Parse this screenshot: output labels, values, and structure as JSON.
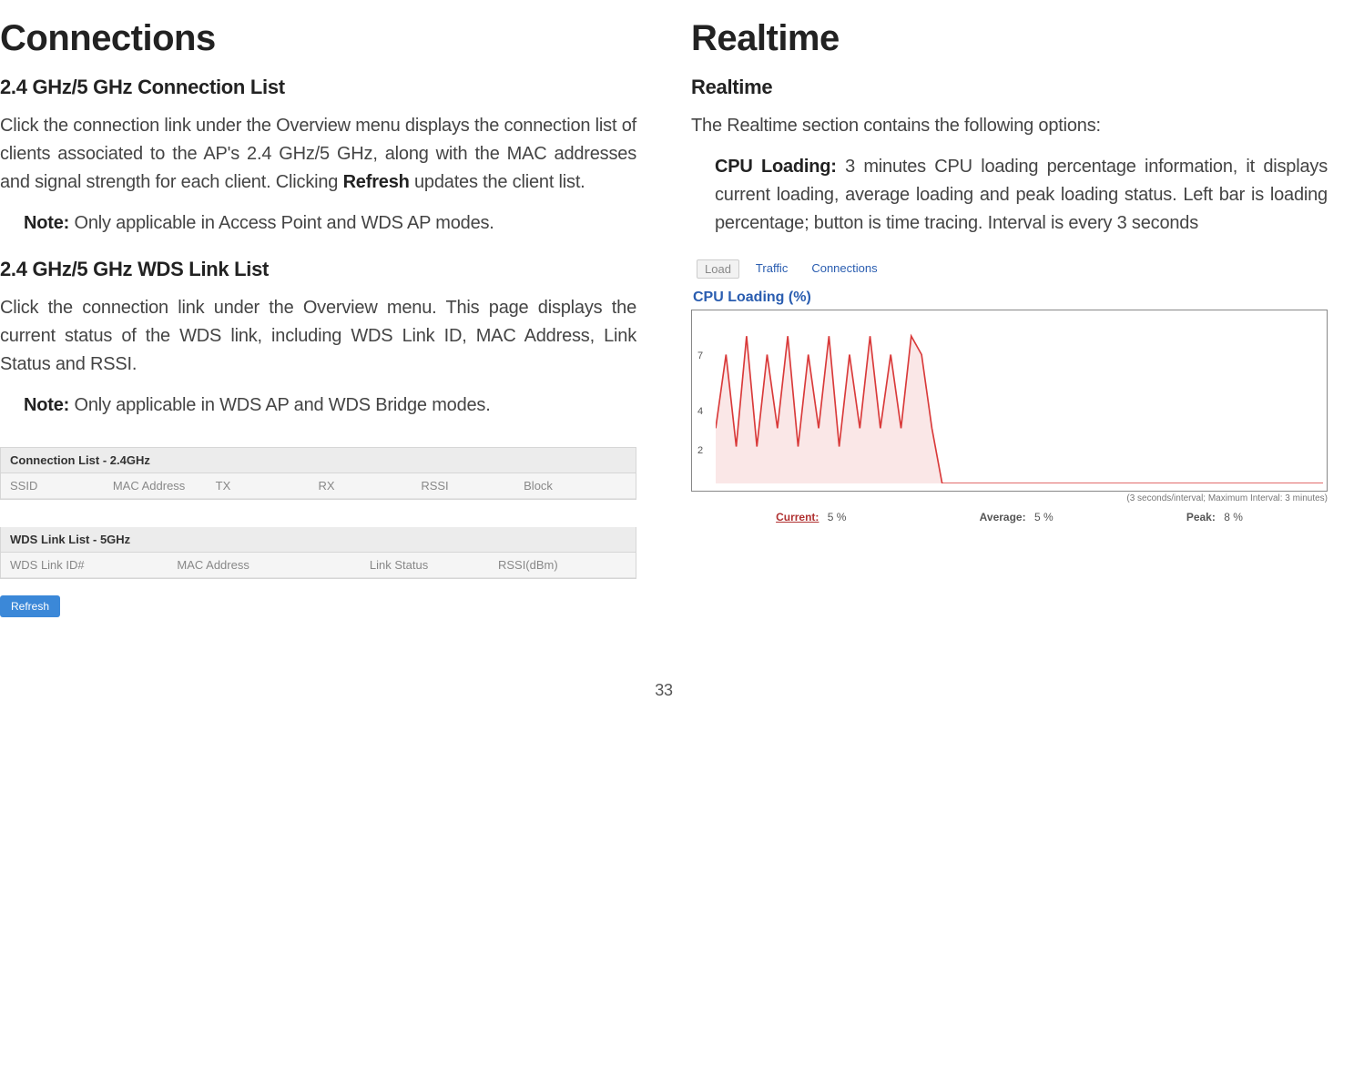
{
  "left": {
    "heading": "Connections",
    "sec1_title": "2.4 GHz/5 GHz Connection List",
    "sec1_body_a": "Click the connection link under the Overview menu displays the connection list of clients associated to the AP's 2.4 GHz/5 GHz, along with the MAC addresses and signal strength for each client. Clicking ",
    "sec1_body_bold": "Refresh",
    "sec1_body_b": " updates the client list.",
    "sec1_note_label": "Note:",
    "sec1_note_body": " Only applicable in Access Point and WDS AP modes.",
    "sec2_title": "2.4 GHz/5 GHz WDS Link List",
    "sec2_body": "Click the connection link under the Overview menu. This page displays the current status of the WDS link, including WDS Link ID, MAC Address, Link Status and RSSI.",
    "sec2_note_label": "Note:",
    "sec2_note_body": " Only applicable in WDS AP and WDS Bridge modes.",
    "conn_table": {
      "title1": "Connection List - 2.4GHz",
      "cols1": [
        "SSID",
        "MAC Address",
        "TX",
        "RX",
        "RSSI",
        "Block"
      ],
      "title2": "WDS Link List - 5GHz",
      "cols2": [
        "WDS Link ID#",
        "MAC Address",
        "Link Status",
        "RSSI(dBm)"
      ],
      "refresh_label": "Refresh"
    }
  },
  "right": {
    "heading": "Realtime",
    "sub_title": "Realtime",
    "intro": "The Realtime section contains the following options:",
    "cpu_label": "CPU Loading:",
    "cpu_body": " 3 minutes CPU loading percentage information, it displays current loading, average loading and peak loading status. Left bar is loading percentage; button is time tracing. Interval is every 3 seconds",
    "chart": {
      "tabs": {
        "load": "Load",
        "traffic": "Traffic",
        "connections": "Connections"
      },
      "title": "CPU Loading (%)",
      "y_ticks": [
        7,
        4,
        2
      ],
      "y_max": 9,
      "note": "(3 seconds/interval; Maximum Interval: 3 minutes)",
      "series": [
        3,
        7,
        2,
        8,
        2,
        7,
        3,
        8,
        2,
        7,
        3,
        8,
        2,
        7,
        3,
        8,
        3,
        7,
        3,
        8,
        7,
        3,
        0,
        0,
        0,
        0,
        0,
        0,
        0,
        0,
        0,
        0,
        0,
        0,
        0,
        0,
        0,
        0,
        0,
        0,
        0,
        0,
        0,
        0,
        0,
        0,
        0,
        0,
        0,
        0,
        0,
        0,
        0,
        0,
        0,
        0,
        0,
        0,
        0,
        0
      ],
      "line_color": "#d93a3a",
      "fill_color": "rgba(217,58,58,0.12)",
      "bg_color": "#ffffff",
      "border_color": "#888888",
      "stats": {
        "current_label": "Current:",
        "current_value": "5 %",
        "average_label": "Average:",
        "average_value": "5 %",
        "peak_label": "Peak:",
        "peak_value": "8 %"
      }
    }
  },
  "page_number": "33"
}
